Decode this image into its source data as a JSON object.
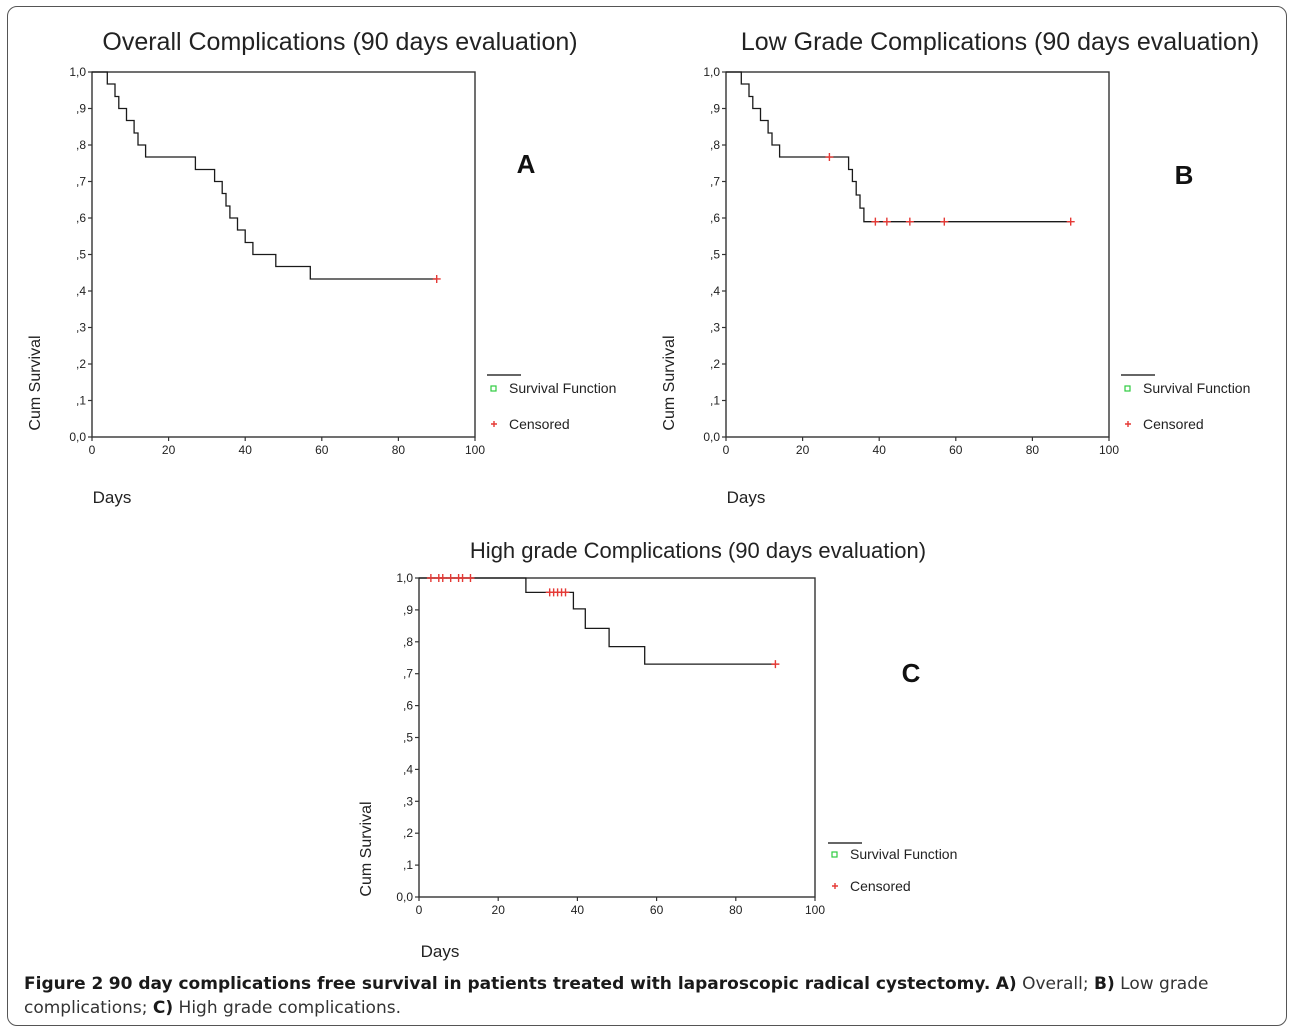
{
  "legend": {
    "survival": "Survival Function",
    "censored": "Censored"
  },
  "caption": {
    "fig_label": "Figure 2",
    "title": "90 day complications free survival in patients treated with laparoscopic radical cystectomy.",
    "a_label": "A)",
    "a_text": "Overall;",
    "b_label": "B)",
    "b_text": "Low grade complications;",
    "c_label": "C)",
    "c_text": "High grade complications."
  },
  "colors": {
    "curve": "#1a1a1a",
    "censored": "#e53935",
    "legend_marker": "#2ecc40"
  },
  "chart_data": [
    {
      "type": "line",
      "title": "Overall Complications (90 days evaluation)",
      "panel_letter": "A",
      "xlabel": "Days",
      "ylabel": "Cum Survival",
      "xlim": [
        0,
        100
      ],
      "ylim": [
        0,
        1
      ],
      "x_ticks": [
        "0",
        "20",
        "40",
        "60",
        "80",
        "100"
      ],
      "y_ticks": [
        "0,0",
        ",1",
        ",2",
        ",3",
        ",4",
        ",5",
        ",6",
        ",7",
        ",8",
        ",9",
        "1,0"
      ],
      "series": [
        {
          "name": "Survival Function",
          "steps": [
            [
              0,
              1.0
            ],
            [
              4,
              1.0
            ],
            [
              4,
              0.967
            ],
            [
              6,
              0.967
            ],
            [
              6,
              0.933
            ],
            [
              7,
              0.933
            ],
            [
              7,
              0.9
            ],
            [
              9,
              0.9
            ],
            [
              9,
              0.867
            ],
            [
              11,
              0.867
            ],
            [
              11,
              0.833
            ],
            [
              12,
              0.833
            ],
            [
              12,
              0.8
            ],
            [
              14,
              0.8
            ],
            [
              14,
              0.767
            ],
            [
              27,
              0.767
            ],
            [
              27,
              0.733
            ],
            [
              32,
              0.733
            ],
            [
              32,
              0.7
            ],
            [
              34,
              0.7
            ],
            [
              34,
              0.667
            ],
            [
              35,
              0.667
            ],
            [
              35,
              0.633
            ],
            [
              36,
              0.633
            ],
            [
              36,
              0.6
            ],
            [
              38,
              0.6
            ],
            [
              38,
              0.567
            ],
            [
              40,
              0.567
            ],
            [
              40,
              0.533
            ],
            [
              42,
              0.533
            ],
            [
              42,
              0.5
            ],
            [
              48,
              0.5
            ],
            [
              48,
              0.467
            ],
            [
              57,
              0.467
            ],
            [
              57,
              0.433
            ],
            [
              90,
              0.433
            ]
          ]
        }
      ],
      "censored": [
        [
          90,
          0.433
        ]
      ]
    },
    {
      "type": "line",
      "title": "Low Grade Complications (90 days evaluation)",
      "panel_letter": "B",
      "xlabel": "Days",
      "ylabel": "Cum Survival",
      "xlim": [
        0,
        100
      ],
      "ylim": [
        0,
        1
      ],
      "x_ticks": [
        "0",
        "20",
        "40",
        "60",
        "80",
        "100"
      ],
      "y_ticks": [
        "0,0",
        ",1",
        ",2",
        ",3",
        ",4",
        ",5",
        ",6",
        ",7",
        ",8",
        ",9",
        "1,0"
      ],
      "series": [
        {
          "name": "Survival Function",
          "steps": [
            [
              0,
              1.0
            ],
            [
              4,
              1.0
            ],
            [
              4,
              0.967
            ],
            [
              6,
              0.967
            ],
            [
              6,
              0.933
            ],
            [
              7,
              0.933
            ],
            [
              7,
              0.9
            ],
            [
              9,
              0.9
            ],
            [
              9,
              0.867
            ],
            [
              11,
              0.867
            ],
            [
              11,
              0.833
            ],
            [
              12,
              0.833
            ],
            [
              12,
              0.8
            ],
            [
              14,
              0.8
            ],
            [
              14,
              0.767
            ],
            [
              32,
              0.767
            ],
            [
              32,
              0.733
            ],
            [
              33,
              0.733
            ],
            [
              33,
              0.7
            ],
            [
              34,
              0.7
            ],
            [
              34,
              0.663
            ],
            [
              35,
              0.663
            ],
            [
              35,
              0.627
            ],
            [
              36,
              0.627
            ],
            [
              36,
              0.59
            ],
            [
              90,
              0.59
            ]
          ]
        }
      ],
      "censored": [
        [
          27,
          0.767
        ],
        [
          39,
          0.59
        ],
        [
          42,
          0.59
        ],
        [
          48,
          0.59
        ],
        [
          57,
          0.59
        ],
        [
          90,
          0.59
        ]
      ]
    },
    {
      "type": "line",
      "title": "High grade Complications (90 days evaluation)",
      "panel_letter": "C",
      "xlabel": "Days",
      "ylabel": "Cum Survival",
      "xlim": [
        0,
        100
      ],
      "ylim": [
        0,
        1
      ],
      "x_ticks": [
        "0",
        "20",
        "40",
        "60",
        "80",
        "100"
      ],
      "y_ticks": [
        "0,0",
        ",1",
        ",2",
        ",3",
        ",4",
        ",5",
        ",6",
        ",7",
        ",8",
        ",9",
        "1,0"
      ],
      "series": [
        {
          "name": "Survival Function",
          "steps": [
            [
              0,
              1.0
            ],
            [
              27,
              1.0
            ],
            [
              27,
              0.955
            ],
            [
              39,
              0.955
            ],
            [
              39,
              0.903
            ],
            [
              42,
              0.903
            ],
            [
              42,
              0.842
            ],
            [
              48,
              0.842
            ],
            [
              48,
              0.785
            ],
            [
              57,
              0.785
            ],
            [
              57,
              0.73
            ],
            [
              90,
              0.73
            ]
          ]
        }
      ],
      "censored": [
        [
          3,
          1.0
        ],
        [
          5,
          1.0
        ],
        [
          6,
          1.0
        ],
        [
          8,
          1.0
        ],
        [
          10,
          1.0
        ],
        [
          11,
          1.0
        ],
        [
          13,
          1.0
        ],
        [
          33,
          0.955
        ],
        [
          34,
          0.955
        ],
        [
          35,
          0.955
        ],
        [
          36,
          0.955
        ],
        [
          37,
          0.955
        ],
        [
          90,
          0.73
        ]
      ]
    }
  ]
}
